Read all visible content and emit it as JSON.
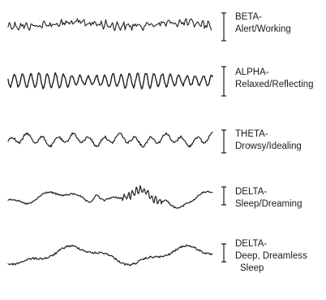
{
  "waves": [
    {
      "name": "BETA-",
      "desc": "Alert/Working"
    },
    {
      "name": "ALPHA-",
      "desc": "Relaxed/Reflecting"
    },
    {
      "name": "THETA-",
      "desc": "Drowsy/Idealing"
    },
    {
      "name": "DELTA-",
      "desc": "Sleep/Dreaming"
    },
    {
      "name": "DELTA-",
      "desc": "Deep, Dreamless",
      "desc2": "Sleep"
    }
  ],
  "colors": {
    "trace": "#1f1f1f",
    "text": "#1a1a1a",
    "background": "#ffffff"
  }
}
